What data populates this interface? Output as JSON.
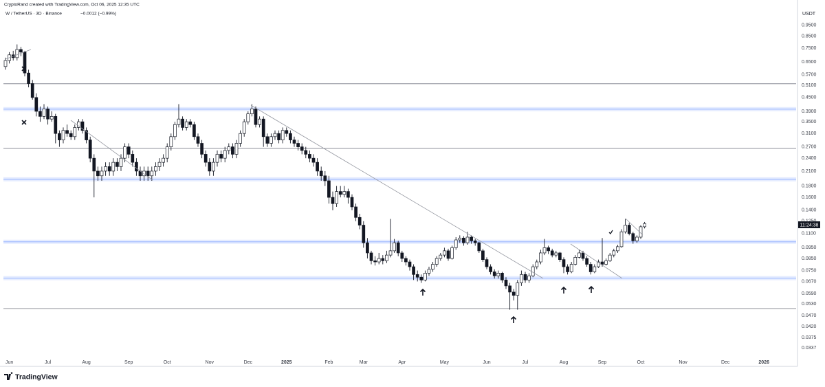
{
  "chart_data": {
    "type": "candlestick",
    "title": "CryptoRand created with TradingView.com, Oct 06, 2025 12:35 UTC",
    "subtitle": "W / TetherUS · 3D · Binance",
    "change": "−0.0012 (−0.99%)",
    "unit": "USDT",
    "countdown": "11:24:38",
    "brand": "TradingView",
    "log_scale": true,
    "up_color": "#ffffff",
    "down_color": "#131722",
    "wick_color": "#131722",
    "level_color": "#787b86",
    "zone_color": "#2962ff",
    "ylim": [
      0.0278,
      1.11
    ],
    "yticks": [
      {
        "value": 0.95,
        "label": "0.9500"
      },
      {
        "value": 0.85,
        "label": "0.8500"
      },
      {
        "value": 0.75,
        "label": "0.7500"
      },
      {
        "value": 0.65,
        "label": "0.6500"
      },
      {
        "value": 0.57,
        "label": "0.5700"
      },
      {
        "value": 0.51,
        "label": "0.5100"
      },
      {
        "value": 0.45,
        "label": "0.4500"
      },
      {
        "value": 0.39,
        "label": "0.3900"
      },
      {
        "value": 0.35,
        "label": "0.3500"
      },
      {
        "value": 0.31,
        "label": "0.3100"
      },
      {
        "value": 0.27,
        "label": "0.2700"
      },
      {
        "value": 0.24,
        "label": "0.2400"
      },
      {
        "value": 0.21,
        "label": "0.2100"
      },
      {
        "value": 0.18,
        "label": "0.1800"
      },
      {
        "value": 0.16,
        "label": "0.1600"
      },
      {
        "value": 0.14,
        "label": "0.1400"
      },
      {
        "value": 0.125,
        "label": "0.1250"
      },
      {
        "value": 0.11,
        "label": "0.1100"
      },
      {
        "value": 0.095,
        "label": "0.0950"
      },
      {
        "value": 0.085,
        "label": "0.0850"
      },
      {
        "value": 0.075,
        "label": "0.0750"
      },
      {
        "value": 0.067,
        "label": "0.0670"
      },
      {
        "value": 0.059,
        "label": "0.0590"
      },
      {
        "value": 0.053,
        "label": "0.0530"
      },
      {
        "value": 0.047,
        "label": "0.0470"
      },
      {
        "value": 0.042,
        "label": "0.0420"
      },
      {
        "value": 0.0375,
        "label": "0.0375"
      },
      {
        "value": 0.0337,
        "label": "0.0337"
      }
    ],
    "levels": [
      0.519,
      0.266,
      0.0506
    ],
    "zones": [
      0.399,
      0.193,
      0.101,
      0.0693
    ],
    "categories": [
      null,
      "Jun",
      null,
      null,
      null,
      null,
      null,
      null,
      null,
      null,
      null,
      "Jul",
      null,
      null,
      null,
      null,
      null,
      null,
      null,
      null,
      null,
      "Aug",
      null,
      null,
      null,
      null,
      null,
      null,
      null,
      null,
      null,
      null,
      "Sep",
      null,
      null,
      null,
      null,
      null,
      null,
      null,
      null,
      null,
      "Oct",
      null,
      null,
      null,
      null,
      null,
      null,
      null,
      null,
      null,
      null,
      "Nov",
      null,
      null,
      null,
      null,
      null,
      null,
      null,
      null,
      null,
      "Dec",
      null,
      null,
      null,
      null,
      null,
      null,
      null,
      null,
      null,
      "2025",
      null,
      null,
      null,
      null,
      null,
      null,
      null,
      null,
      null,
      null,
      "Feb",
      null,
      null,
      null,
      null,
      null,
      null,
      null,
      null,
      "Mar",
      null,
      null,
      null,
      null,
      null,
      null,
      null,
      null,
      null,
      "Apr",
      null,
      null,
      null,
      null,
      null,
      null,
      null,
      null,
      null,
      null,
      "May",
      null,
      null,
      null,
      null,
      null,
      null,
      null,
      null,
      null,
      null,
      "Jun",
      null,
      null,
      null,
      null,
      null,
      null,
      null,
      null,
      null,
      "Jul",
      null,
      null,
      null,
      null,
      null,
      null,
      null,
      null,
      null,
      "Aug",
      null,
      null,
      null,
      null,
      null,
      null,
      null,
      null,
      null,
      "Sep",
      null,
      null,
      null,
      null,
      null,
      null,
      null,
      null,
      null,
      "Oct",
      null,
      null,
      null,
      null,
      null,
      null,
      null,
      null,
      null,
      null,
      "Nov",
      null,
      null,
      null,
      null,
      null,
      null,
      null,
      null,
      null,
      null,
      "Dec",
      null,
      null,
      null,
      null,
      null,
      null,
      null,
      null,
      null,
      "2026"
    ],
    "ohlc": [
      [
        0.62,
        0.68,
        0.6,
        0.66
      ],
      [
        0.66,
        0.72,
        0.64,
        0.7
      ],
      [
        0.7,
        0.73,
        0.66,
        0.68
      ],
      [
        0.68,
        0.78,
        0.66,
        0.74
      ],
      [
        0.74,
        0.76,
        0.69,
        0.72
      ],
      [
        0.72,
        0.73,
        0.56,
        0.58
      ],
      [
        0.58,
        0.6,
        0.5,
        0.52
      ],
      [
        0.52,
        0.54,
        0.44,
        0.45
      ],
      [
        0.45,
        0.47,
        0.37,
        0.39
      ],
      [
        0.39,
        0.41,
        0.35,
        0.37
      ],
      [
        0.37,
        0.42,
        0.36,
        0.4
      ],
      [
        0.4,
        0.41,
        0.34,
        0.36
      ],
      [
        0.36,
        0.39,
        0.35,
        0.37
      ],
      [
        0.37,
        0.38,
        0.28,
        0.31
      ],
      [
        0.31,
        0.32,
        0.27,
        0.29
      ],
      [
        0.29,
        0.33,
        0.28,
        0.32
      ],
      [
        0.32,
        0.34,
        0.3,
        0.31
      ],
      [
        0.31,
        0.32,
        0.29,
        0.3
      ],
      [
        0.3,
        0.34,
        0.29,
        0.33
      ],
      [
        0.33,
        0.36,
        0.32,
        0.35
      ],
      [
        0.35,
        0.36,
        0.31,
        0.32
      ],
      [
        0.32,
        0.33,
        0.28,
        0.29
      ],
      [
        0.29,
        0.3,
        0.23,
        0.24
      ],
      [
        0.24,
        0.25,
        0.16,
        0.21
      ],
      [
        0.21,
        0.22,
        0.19,
        0.2
      ],
      [
        0.2,
        0.22,
        0.19,
        0.21
      ],
      [
        0.21,
        0.23,
        0.2,
        0.22
      ],
      [
        0.22,
        0.23,
        0.2,
        0.21
      ],
      [
        0.21,
        0.24,
        0.2,
        0.23
      ],
      [
        0.23,
        0.24,
        0.21,
        0.22
      ],
      [
        0.22,
        0.25,
        0.21,
        0.24
      ],
      [
        0.24,
        0.28,
        0.23,
        0.27
      ],
      [
        0.27,
        0.28,
        0.24,
        0.25
      ],
      [
        0.25,
        0.26,
        0.22,
        0.23
      ],
      [
        0.23,
        0.24,
        0.2,
        0.21
      ],
      [
        0.21,
        0.22,
        0.19,
        0.2
      ],
      [
        0.2,
        0.22,
        0.19,
        0.21
      ],
      [
        0.21,
        0.22,
        0.19,
        0.2
      ],
      [
        0.2,
        0.22,
        0.19,
        0.21
      ],
      [
        0.21,
        0.23,
        0.2,
        0.22
      ],
      [
        0.22,
        0.24,
        0.21,
        0.23
      ],
      [
        0.23,
        0.25,
        0.22,
        0.24
      ],
      [
        0.24,
        0.28,
        0.23,
        0.27
      ],
      [
        0.27,
        0.31,
        0.26,
        0.3
      ],
      [
        0.3,
        0.35,
        0.29,
        0.34
      ],
      [
        0.34,
        0.42,
        0.33,
        0.36
      ],
      [
        0.36,
        0.37,
        0.32,
        0.33
      ],
      [
        0.33,
        0.36,
        0.32,
        0.35
      ],
      [
        0.35,
        0.36,
        0.33,
        0.34
      ],
      [
        0.34,
        0.35,
        0.29,
        0.3
      ],
      [
        0.3,
        0.31,
        0.27,
        0.28
      ],
      [
        0.28,
        0.29,
        0.24,
        0.25
      ],
      [
        0.25,
        0.26,
        0.22,
        0.23
      ],
      [
        0.23,
        0.24,
        0.2,
        0.21
      ],
      [
        0.21,
        0.24,
        0.2,
        0.23
      ],
      [
        0.23,
        0.26,
        0.22,
        0.25
      ],
      [
        0.25,
        0.26,
        0.23,
        0.24
      ],
      [
        0.24,
        0.27,
        0.23,
        0.26
      ],
      [
        0.26,
        0.28,
        0.25,
        0.27
      ],
      [
        0.27,
        0.28,
        0.24,
        0.25
      ],
      [
        0.25,
        0.29,
        0.24,
        0.28
      ],
      [
        0.28,
        0.32,
        0.27,
        0.31
      ],
      [
        0.31,
        0.36,
        0.3,
        0.35
      ],
      [
        0.35,
        0.39,
        0.34,
        0.38
      ],
      [
        0.38,
        0.42,
        0.37,
        0.4
      ],
      [
        0.4,
        0.41,
        0.33,
        0.34
      ],
      [
        0.34,
        0.37,
        0.33,
        0.36
      ],
      [
        0.36,
        0.37,
        0.27,
        0.3
      ],
      [
        0.3,
        0.31,
        0.27,
        0.28
      ],
      [
        0.28,
        0.31,
        0.27,
        0.3
      ],
      [
        0.3,
        0.32,
        0.29,
        0.31
      ],
      [
        0.31,
        0.32,
        0.28,
        0.29
      ],
      [
        0.29,
        0.33,
        0.28,
        0.32
      ],
      [
        0.32,
        0.33,
        0.3,
        0.31
      ],
      [
        0.31,
        0.32,
        0.28,
        0.29
      ],
      [
        0.29,
        0.3,
        0.27,
        0.28
      ],
      [
        0.28,
        0.29,
        0.26,
        0.27
      ],
      [
        0.27,
        0.28,
        0.25,
        0.26
      ],
      [
        0.26,
        0.27,
        0.24,
        0.25
      ],
      [
        0.25,
        0.26,
        0.23,
        0.24
      ],
      [
        0.24,
        0.25,
        0.22,
        0.23
      ],
      [
        0.23,
        0.24,
        0.2,
        0.21
      ],
      [
        0.21,
        0.22,
        0.19,
        0.2
      ],
      [
        0.2,
        0.21,
        0.18,
        0.19
      ],
      [
        0.19,
        0.2,
        0.15,
        0.16
      ],
      [
        0.16,
        0.17,
        0.14,
        0.15
      ],
      [
        0.15,
        0.18,
        0.145,
        0.17
      ],
      [
        0.17,
        0.18,
        0.16,
        0.165
      ],
      [
        0.165,
        0.18,
        0.16,
        0.17
      ],
      [
        0.17,
        0.175,
        0.15,
        0.16
      ],
      [
        0.16,
        0.165,
        0.14,
        0.145
      ],
      [
        0.145,
        0.15,
        0.125,
        0.13
      ],
      [
        0.13,
        0.135,
        0.115,
        0.12
      ],
      [
        0.12,
        0.125,
        0.095,
        0.1
      ],
      [
        0.1,
        0.105,
        0.085,
        0.09
      ],
      [
        0.09,
        0.092,
        0.08,
        0.083
      ],
      [
        0.083,
        0.087,
        0.079,
        0.082
      ],
      [
        0.082,
        0.09,
        0.08,
        0.085
      ],
      [
        0.085,
        0.088,
        0.08,
        0.083
      ],
      [
        0.083,
        0.092,
        0.081,
        0.088
      ],
      [
        0.088,
        0.128,
        0.086,
        0.092
      ],
      [
        0.092,
        0.104,
        0.09,
        0.1
      ],
      [
        0.1,
        0.102,
        0.087,
        0.09
      ],
      [
        0.09,
        0.092,
        0.082,
        0.085
      ],
      [
        0.085,
        0.087,
        0.079,
        0.082
      ],
      [
        0.082,
        0.084,
        0.075,
        0.078
      ],
      [
        0.078,
        0.08,
        0.068,
        0.072
      ],
      [
        0.072,
        0.075,
        0.067,
        0.07
      ],
      [
        0.07,
        0.072,
        0.066,
        0.068
      ],
      [
        0.068,
        0.075,
        0.067,
        0.073
      ],
      [
        0.073,
        0.078,
        0.071,
        0.076
      ],
      [
        0.076,
        0.082,
        0.074,
        0.08
      ],
      [
        0.08,
        0.087,
        0.078,
        0.085
      ],
      [
        0.085,
        0.09,
        0.083,
        0.088
      ],
      [
        0.088,
        0.095,
        0.086,
        0.092
      ],
      [
        0.092,
        0.094,
        0.083,
        0.085
      ],
      [
        0.085,
        0.097,
        0.084,
        0.095
      ],
      [
        0.095,
        0.106,
        0.093,
        0.103
      ],
      [
        0.103,
        0.108,
        0.1,
        0.105
      ],
      [
        0.105,
        0.107,
        0.097,
        0.1
      ],
      [
        0.1,
        0.112,
        0.098,
        0.106
      ],
      [
        0.106,
        0.108,
        0.099,
        0.102
      ],
      [
        0.102,
        0.104,
        0.097,
        0.1
      ],
      [
        0.1,
        0.101,
        0.09,
        0.092
      ],
      [
        0.092,
        0.094,
        0.082,
        0.084
      ],
      [
        0.084,
        0.086,
        0.076,
        0.078
      ],
      [
        0.078,
        0.08,
        0.072,
        0.074
      ],
      [
        0.074,
        0.076,
        0.069,
        0.071
      ],
      [
        0.071,
        0.075,
        0.069,
        0.073
      ],
      [
        0.073,
        0.074,
        0.066,
        0.068
      ],
      [
        0.068,
        0.07,
        0.062,
        0.064
      ],
      [
        0.064,
        0.066,
        0.05,
        0.06
      ],
      [
        0.06,
        0.062,
        0.055,
        0.058
      ],
      [
        0.058,
        0.068,
        0.05,
        0.066
      ],
      [
        0.066,
        0.075,
        0.064,
        0.072
      ],
      [
        0.072,
        0.074,
        0.066,
        0.068
      ],
      [
        0.068,
        0.073,
        0.066,
        0.071
      ],
      [
        0.071,
        0.08,
        0.07,
        0.078
      ],
      [
        0.078,
        0.084,
        0.076,
        0.082
      ],
      [
        0.082,
        0.093,
        0.08,
        0.09
      ],
      [
        0.09,
        0.104,
        0.088,
        0.095
      ],
      [
        0.095,
        0.097,
        0.089,
        0.092
      ],
      [
        0.092,
        0.094,
        0.086,
        0.088
      ],
      [
        0.088,
        0.092,
        0.086,
        0.09
      ],
      [
        0.09,
        0.091,
        0.082,
        0.084
      ],
      [
        0.084,
        0.086,
        0.073,
        0.078
      ],
      [
        0.078,
        0.08,
        0.072,
        0.074
      ],
      [
        0.074,
        0.082,
        0.073,
        0.08
      ],
      [
        0.08,
        0.088,
        0.079,
        0.086
      ],
      [
        0.086,
        0.093,
        0.085,
        0.09
      ],
      [
        0.09,
        0.092,
        0.083,
        0.085
      ],
      [
        0.085,
        0.087,
        0.078,
        0.08
      ],
      [
        0.08,
        0.082,
        0.072,
        0.074
      ],
      [
        0.074,
        0.08,
        0.073,
        0.078
      ],
      [
        0.078,
        0.084,
        0.077,
        0.082
      ],
      [
        0.082,
        0.105,
        0.078,
        0.08
      ],
      [
        0.08,
        0.085,
        0.079,
        0.083
      ],
      [
        0.083,
        0.09,
        0.082,
        0.088
      ],
      [
        0.088,
        0.094,
        0.086,
        0.092
      ],
      [
        0.092,
        0.098,
        0.09,
        0.096
      ],
      [
        0.096,
        0.115,
        0.095,
        0.112
      ],
      [
        0.112,
        0.128,
        0.11,
        0.12
      ],
      [
        0.12,
        0.123,
        0.108,
        0.11
      ],
      [
        0.11,
        0.112,
        0.099,
        0.102
      ],
      [
        0.102,
        0.108,
        0.1,
        0.106
      ],
      [
        0.106,
        0.12,
        0.104,
        0.118
      ],
      [
        0.118,
        0.124,
        0.116,
        0.122
      ],
      null,
      null,
      null,
      null,
      null,
      null,
      null,
      null,
      null,
      null,
      null,
      null,
      null,
      null,
      null,
      null,
      null,
      null,
      null,
      null,
      null,
      null,
      null,
      null,
      null,
      null,
      null,
      null,
      null,
      null,
      null
    ]
  }
}
